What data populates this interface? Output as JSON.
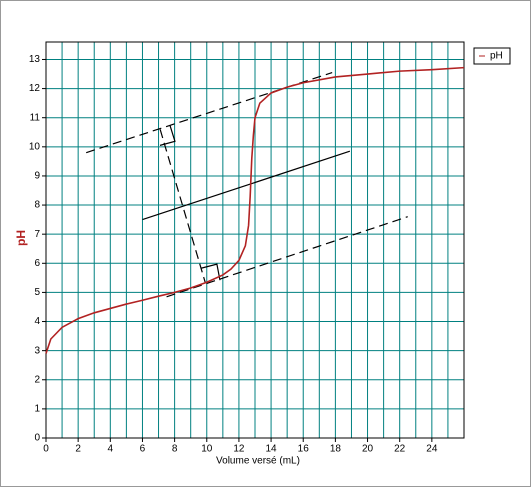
{
  "chart_data": {
    "type": "line",
    "x_label": "Volume versé (mL)",
    "y_label": "pH",
    "xlim": [
      0,
      26
    ],
    "ylim": [
      0,
      13.6
    ],
    "xticks": [
      0,
      2,
      4,
      6,
      8,
      10,
      12,
      14,
      16,
      18,
      20,
      22,
      24
    ],
    "yticks": [
      0,
      1,
      2,
      3,
      4,
      5,
      6,
      7,
      8,
      9,
      10,
      11,
      12,
      13
    ],
    "x_minor_grid": [
      1,
      3,
      5,
      7,
      9,
      11,
      13,
      15,
      17,
      19,
      21,
      23,
      25
    ],
    "grid": true,
    "grid_color": "#008080",
    "legend": "upper-right",
    "series": [
      {
        "name": "pH",
        "color": "#b22222",
        "x": [
          0,
          0.3,
          1,
          2,
          3,
          4,
          5,
          6,
          7,
          8,
          9,
          10,
          11,
          11.5,
          12,
          12.4,
          12.6,
          12.7,
          12.8,
          12.9,
          13.0,
          13.3,
          14,
          15,
          16,
          18,
          20,
          22,
          24,
          26
        ],
        "values": [
          2.9,
          3.4,
          3.8,
          4.1,
          4.3,
          4.45,
          4.6,
          4.73,
          4.87,
          5.0,
          5.15,
          5.35,
          5.6,
          5.8,
          6.1,
          6.6,
          7.3,
          8.3,
          9.6,
          10.4,
          11.0,
          11.5,
          11.85,
          12.05,
          12.2,
          12.4,
          12.5,
          12.6,
          12.65,
          12.72
        ]
      }
    ],
    "constructions": [
      {
        "x": [
          2.5,
          17.8
        ],
        "y": [
          9.8,
          12.55
        ],
        "dashed": true
      },
      {
        "x": [
          7.5,
          22.5
        ],
        "y": [
          4.85,
          7.6
        ],
        "dashed": true
      },
      {
        "x": [
          6,
          18.9
        ],
        "y": [
          7.5,
          9.85
        ],
        "dashed": false
      },
      {
        "x": [
          7.1,
          9.9
        ],
        "y": [
          10.6,
          5.35
        ],
        "dashed": true
      },
      {
        "x": [
          7.71,
          8.02,
          7.09
        ],
        "y": [
          10.74,
          10.19,
          10.05
        ],
        "dashed": false
      },
      {
        "x": [
          9.64,
          10.63,
          10.82
        ],
        "y": [
          5.83,
          5.97,
          5.42
        ],
        "dashed": false
      }
    ]
  }
}
